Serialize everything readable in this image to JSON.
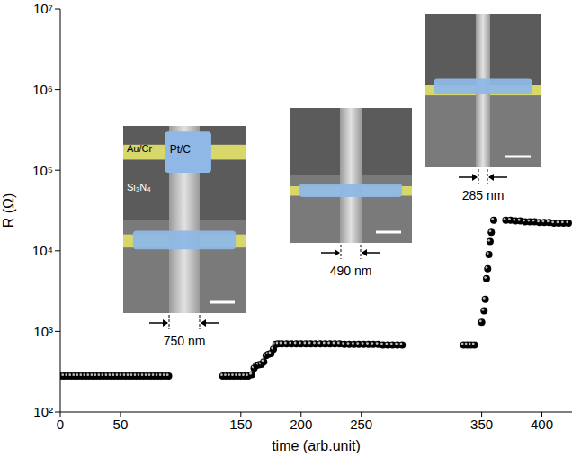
{
  "chart_data": {
    "type": "scatter",
    "xlabel": "time (arb.unit)",
    "ylabel": "R (Ω)",
    "log": "y",
    "xlim": [
      0,
      425
    ],
    "xticks": [
      0,
      50,
      150,
      200,
      250,
      350,
      400
    ],
    "ylim": [
      100,
      10000000
    ],
    "yticks": [
      {
        "value": 100,
        "label": "10²"
      },
      {
        "value": 1000,
        "label": "10³"
      },
      {
        "value": 10000,
        "label": "10⁴"
      },
      {
        "value": 100000,
        "label": "10⁵"
      },
      {
        "value": 1000000,
        "label": "10⁶"
      },
      {
        "value": 10000000,
        "label": "10⁷"
      }
    ],
    "color": "#000000",
    "marker": "circle",
    "annotations": [
      "Au/Cr",
      "Pt/C",
      "Si₃N₄",
      "750 nm",
      "490 nm",
      "285 nm"
    ],
    "x": [
      0,
      3,
      6,
      9,
      12,
      15,
      18,
      21,
      24,
      27,
      30,
      33,
      36,
      39,
      42,
      45,
      48,
      51,
      54,
      57,
      60,
      63,
      66,
      69,
      72,
      75,
      78,
      81,
      84,
      87,
      90,
      135,
      138,
      141,
      144,
      147,
      150,
      153,
      156,
      159,
      161,
      163,
      165,
      167,
      169,
      171,
      173,
      175,
      177,
      179,
      181,
      184,
      188,
      192,
      196,
      200,
      204,
      208,
      212,
      216,
      220,
      224,
      228,
      232,
      236,
      240,
      244,
      248,
      252,
      256,
      260,
      264,
      268,
      272,
      276,
      280,
      284,
      335,
      338,
      341,
      344,
      350,
      352,
      353,
      354,
      355,
      356,
      357,
      358,
      360,
      370,
      374,
      378,
      382,
      386,
      390,
      394,
      398,
      402,
      406,
      410,
      414,
      418,
      422
    ],
    "values": [
      280,
      280,
      280,
      280,
      280,
      280,
      280,
      280,
      280,
      280,
      280,
      280,
      280,
      280,
      280,
      280,
      280,
      280,
      280,
      280,
      280,
      280,
      280,
      280,
      280,
      280,
      280,
      280,
      280,
      280,
      280,
      280,
      280,
      280,
      280,
      280,
      280,
      280,
      280,
      290,
      350,
      380,
      385,
      390,
      420,
      500,
      520,
      530,
      600,
      690,
      700,
      700,
      700,
      700,
      700,
      700,
      700,
      700,
      700,
      700,
      700,
      700,
      700,
      700,
      690,
      690,
      690,
      690,
      690,
      690,
      690,
      690,
      680,
      680,
      680,
      680,
      680,
      680,
      680,
      680,
      680,
      1300,
      1800,
      2500,
      4500,
      6000,
      9000,
      13000,
      17000,
      24000,
      24000,
      24000,
      23500,
      23500,
      23000,
      23000,
      23000,
      22500,
      22500,
      22500,
      22000,
      22000,
      22000,
      22000
    ]
  }
}
